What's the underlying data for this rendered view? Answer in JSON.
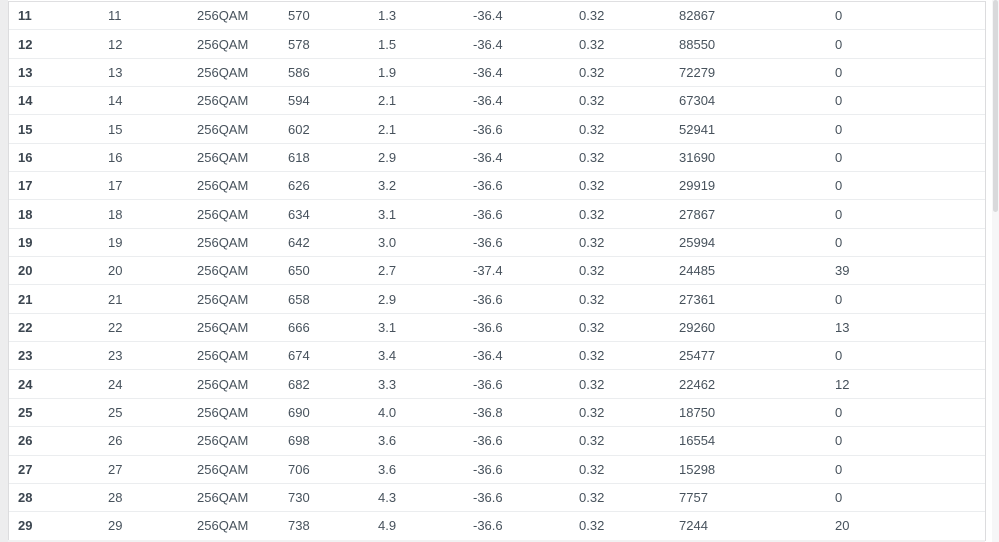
{
  "colors": {
    "row_border": "#ebedef",
    "text": "#47525c",
    "text_bold": "#3c4650",
    "gutter": "#ededee",
    "scrollbar_thumb": "#d9d9db"
  },
  "table": {
    "rows": [
      [
        "11",
        "11",
        "256QAM",
        "570",
        "1.3",
        "-36.4",
        "0.32",
        "82867",
        "0"
      ],
      [
        "12",
        "12",
        "256QAM",
        "578",
        "1.5",
        "-36.4",
        "0.32",
        "88550",
        "0"
      ],
      [
        "13",
        "13",
        "256QAM",
        "586",
        "1.9",
        "-36.4",
        "0.32",
        "72279",
        "0"
      ],
      [
        "14",
        "14",
        "256QAM",
        "594",
        "2.1",
        "-36.4",
        "0.32",
        "67304",
        "0"
      ],
      [
        "15",
        "15",
        "256QAM",
        "602",
        "2.1",
        "-36.6",
        "0.32",
        "52941",
        "0"
      ],
      [
        "16",
        "16",
        "256QAM",
        "618",
        "2.9",
        "-36.4",
        "0.32",
        "31690",
        "0"
      ],
      [
        "17",
        "17",
        "256QAM",
        "626",
        "3.2",
        "-36.6",
        "0.32",
        "29919",
        "0"
      ],
      [
        "18",
        "18",
        "256QAM",
        "634",
        "3.1",
        "-36.6",
        "0.32",
        "27867",
        "0"
      ],
      [
        "19",
        "19",
        "256QAM",
        "642",
        "3.0",
        "-36.6",
        "0.32",
        "25994",
        "0"
      ],
      [
        "20",
        "20",
        "256QAM",
        "650",
        "2.7",
        "-37.4",
        "0.32",
        "24485",
        "39"
      ],
      [
        "21",
        "21",
        "256QAM",
        "658",
        "2.9",
        "-36.6",
        "0.32",
        "27361",
        "0"
      ],
      [
        "22",
        "22",
        "256QAM",
        "666",
        "3.1",
        "-36.6",
        "0.32",
        "29260",
        "13"
      ],
      [
        "23",
        "23",
        "256QAM",
        "674",
        "3.4",
        "-36.4",
        "0.32",
        "25477",
        "0"
      ],
      [
        "24",
        "24",
        "256QAM",
        "682",
        "3.3",
        "-36.6",
        "0.32",
        "22462",
        "12"
      ],
      [
        "25",
        "25",
        "256QAM",
        "690",
        "4.0",
        "-36.8",
        "0.32",
        "18750",
        "0"
      ],
      [
        "26",
        "26",
        "256QAM",
        "698",
        "3.6",
        "-36.6",
        "0.32",
        "16554",
        "0"
      ],
      [
        "27",
        "27",
        "256QAM",
        "706",
        "3.6",
        "-36.6",
        "0.32",
        "15298",
        "0"
      ],
      [
        "28",
        "28",
        "256QAM",
        "730",
        "4.3",
        "-36.6",
        "0.32",
        "7757",
        "0"
      ],
      [
        "29",
        "29",
        "256QAM",
        "738",
        "4.9",
        "-36.6",
        "0.32",
        "7244",
        "20"
      ]
    ]
  }
}
